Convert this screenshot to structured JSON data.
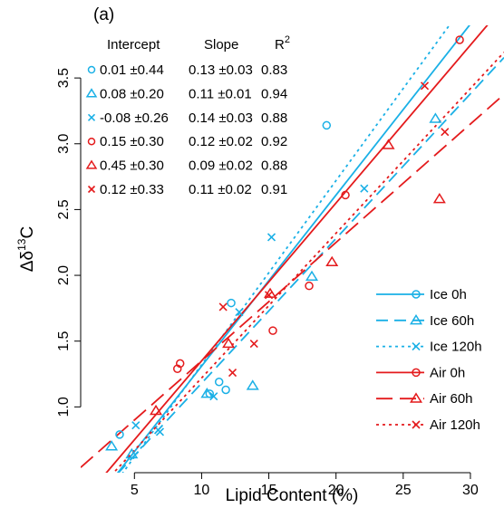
{
  "panel_label": "(a)",
  "chart_data": {
    "type": "scatter",
    "xlabel": "Lipid Content (%)",
    "ylabel_main": "Δδ",
    "ylabel_sup": "13",
    "ylabel_unit": "C",
    "xlim": [
      1.0,
      32.5
    ],
    "ylim": [
      0.5,
      3.9
    ],
    "xticks": [
      5,
      10,
      15,
      20,
      25,
      30
    ],
    "xtick_labels": [
      "5",
      "10",
      "15",
      "20",
      "25",
      "30"
    ],
    "yticks": [
      1.0,
      1.5,
      2.0,
      2.5,
      3.0,
      3.5
    ],
    "ytick_labels": [
      "1.0",
      "1.5",
      "2.0",
      "2.5",
      "3.0",
      "3.5"
    ],
    "colors": {
      "ice": "#1AB0E6",
      "air": "#E41A1C"
    },
    "series": [
      {
        "name": "Ice 0h",
        "color": "#1AB0E6",
        "marker": "circle",
        "dash": "solid",
        "intercept": 0.01,
        "slope": 0.13,
        "points": [
          [
            3.9,
            0.79
          ],
          [
            10.6,
            1.1
          ],
          [
            11.3,
            1.19
          ],
          [
            11.8,
            1.13
          ],
          [
            12.2,
            1.79
          ],
          [
            19.3,
            3.14
          ]
        ]
      },
      {
        "name": "Ice 60h",
        "color": "#1AB0E6",
        "marker": "triangle",
        "dash": "longdash",
        "intercept": 0.08,
        "slope": 0.11,
        "points": [
          [
            3.3,
            0.7
          ],
          [
            4.8,
            0.64
          ],
          [
            10.4,
            1.1
          ],
          [
            13.8,
            1.16
          ],
          [
            18.2,
            1.99
          ],
          [
            27.4,
            3.19
          ]
        ]
      },
      {
        "name": "Ice 120h",
        "color": "#1AB0E6",
        "marker": "x",
        "dash": "dotted",
        "intercept": -0.08,
        "slope": 0.14,
        "points": [
          [
            5.1,
            0.86
          ],
          [
            6.9,
            0.81
          ],
          [
            10.9,
            1.08
          ],
          [
            12.8,
            1.72
          ],
          [
            15.2,
            2.29
          ],
          [
            22.1,
            2.66
          ]
        ]
      },
      {
        "name": "Air 0h",
        "color": "#E41A1C",
        "marker": "circle",
        "dash": "solid",
        "intercept": 0.15,
        "slope": 0.12,
        "points": [
          [
            8.2,
            1.29
          ],
          [
            8.4,
            1.33
          ],
          [
            15.3,
            1.58
          ],
          [
            18.0,
            1.92
          ],
          [
            20.7,
            2.61
          ],
          [
            29.2,
            3.79
          ]
        ]
      },
      {
        "name": "Air 60h",
        "color": "#E41A1C",
        "marker": "triangle",
        "dash": "dashed",
        "intercept": 0.45,
        "slope": 0.09,
        "points": [
          [
            6.6,
            0.97
          ],
          [
            12.0,
            1.48
          ],
          [
            15.1,
            1.86
          ],
          [
            19.7,
            2.1
          ],
          [
            23.9,
            2.99
          ],
          [
            27.7,
            2.58
          ]
        ]
      },
      {
        "name": "Air 120h",
        "color": "#E41A1C",
        "marker": "x",
        "dash": "dotted",
        "intercept": 0.12,
        "slope": 0.11,
        "points": [
          [
            11.6,
            1.76
          ],
          [
            12.3,
            1.26
          ],
          [
            13.9,
            1.48
          ],
          [
            15.0,
            1.85
          ],
          [
            26.6,
            3.44
          ],
          [
            28.1,
            3.09
          ]
        ]
      }
    ],
    "stats_table": {
      "headers": [
        "Intercept",
        "Slope",
        "R"
      ],
      "header_sup": "2",
      "rows": [
        {
          "intercept": "0.01 ±0.44",
          "slope": "0.13 ±0.03",
          "r2": "0.83"
        },
        {
          "intercept": "0.08 ±0.20",
          "slope": "0.11 ±0.01",
          "r2": "0.94"
        },
        {
          "intercept": "-0.08 ±0.26",
          "slope": "0.14 ±0.03",
          "r2": "0.88"
        },
        {
          "intercept": "0.15 ±0.30",
          "slope": "0.12 ±0.02",
          "r2": "0.92"
        },
        {
          "intercept": "0.45 ±0.30",
          "slope": "0.09 ±0.02",
          "r2": "0.88"
        },
        {
          "intercept": "0.12 ±0.33",
          "slope": "0.11 ±0.02",
          "r2": "0.91"
        }
      ]
    },
    "legend_position": "bottom-right",
    "grid": false
  }
}
